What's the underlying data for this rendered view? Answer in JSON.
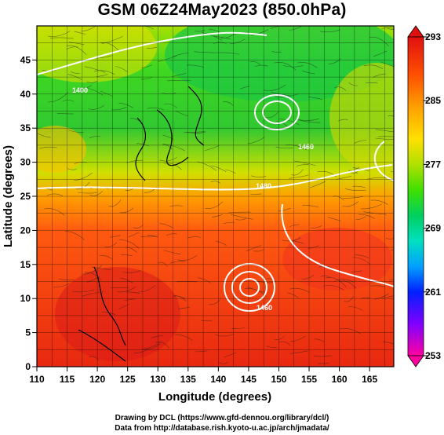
{
  "title": "GSM 06Z24May2023 (850.0hPa)",
  "map": {
    "lon_range": [
      110,
      169
    ],
    "lat_range": [
      0,
      50
    ],
    "x_ticks": [
      110,
      115,
      120,
      125,
      130,
      135,
      140,
      145,
      150,
      155,
      160,
      165
    ],
    "y_ticks": [
      0,
      5,
      10,
      15,
      20,
      25,
      30,
      35,
      40,
      45
    ],
    "xlabel": "Longitude (degrees)",
    "ylabel": "Latitude  (degrees)",
    "contour_labels": [
      "1400",
      "1480",
      "1460",
      "1460"
    ],
    "colorbar": {
      "ticks": [
        "293",
        "285",
        "277",
        "269",
        "261",
        "253"
      ],
      "colors": [
        "#ff00a0",
        "#8000ff",
        "#0020ff",
        "#00a0ff",
        "#00e0c0",
        "#00d060",
        "#40e000",
        "#b0e000",
        "#ffe000",
        "#ffa000",
        "#ff5000",
        "#e01010"
      ]
    }
  },
  "footer": {
    "line1": "Drawing by DCL (https://www.gfd-dennou.org/library/dcl/)",
    "line2": "Data from http://database.rish.kyoto-u.ac.jp/arch/jmadata/"
  }
}
